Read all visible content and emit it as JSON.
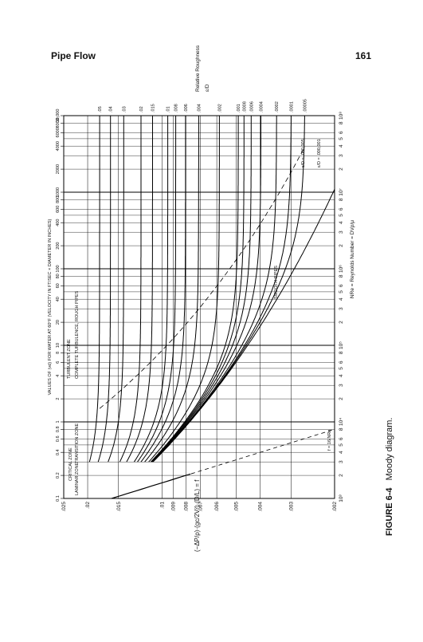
{
  "header": {
    "title": "Pipe Flow",
    "page": "161"
  },
  "figure": {
    "top_axis_label": "VALUES OF (vd) FOR WATER AT 60°F (VELOCITY IN FT/SEC × DIAMETER IN INCHES)",
    "vd_lim": [
      0.1,
      10000
    ],
    "vd_ticks": [
      0.1,
      0.2,
      0.4,
      0.6,
      0.8,
      1,
      2,
      4,
      6,
      8,
      10,
      20,
      40,
      60,
      80,
      100,
      200,
      400,
      600,
      800,
      1000,
      2000,
      4000,
      6000,
      8000,
      {
        "value": 10000,
        "label": "10,000"
      }
    ],
    "re_lim": [
      1000,
      100000000
    ],
    "re_ticks": [
      {
        "value": 1000,
        "label": "10³"
      },
      {
        "value": 2000,
        "label": "2"
      },
      {
        "value": 3000,
        "label": "3"
      },
      {
        "value": 4000,
        "label": "4"
      },
      {
        "value": 5000,
        "label": "5"
      },
      {
        "value": 6000,
        "label": "6"
      },
      {
        "value": 8000,
        "label": "8"
      },
      {
        "value": 10000,
        "label": "10⁴"
      },
      {
        "value": 20000,
        "label": "2"
      },
      {
        "value": 30000,
        "label": "3"
      },
      {
        "value": 40000,
        "label": "4"
      },
      {
        "value": 50000,
        "label": "5"
      },
      {
        "value": 60000,
        "label": "6"
      },
      {
        "value": 80000,
        "label": "8"
      },
      {
        "value": 100000,
        "label": "10⁵"
      },
      {
        "value": 200000,
        "label": "2"
      },
      {
        "value": 300000,
        "label": "3"
      },
      {
        "value": 400000,
        "label": "4"
      },
      {
        "value": 500000,
        "label": "5"
      },
      {
        "value": 600000,
        "label": "6"
      },
      {
        "value": 800000,
        "label": "8"
      },
      {
        "value": 1000000,
        "label": "10⁶"
      },
      {
        "value": 2000000,
        "label": "2"
      },
      {
        "value": 3000000,
        "label": "3"
      },
      {
        "value": 4000000,
        "label": "4"
      },
      {
        "value": 5000000,
        "label": "5"
      },
      {
        "value": 6000000,
        "label": "6"
      },
      {
        "value": 8000000,
        "label": "8"
      },
      {
        "value": 10000000,
        "label": "10⁷"
      },
      {
        "value": 20000000,
        "label": "2"
      },
      {
        "value": 30000000,
        "label": "3"
      },
      {
        "value": 40000000,
        "label": "4"
      },
      {
        "value": 50000000,
        "label": "5"
      },
      {
        "value": 60000000,
        "label": "6"
      },
      {
        "value": 80000000,
        "label": "8"
      },
      {
        "value": 100000000,
        "label": "10⁸"
      }
    ],
    "f_lim": [
      0.002,
      0.025
    ],
    "f_ticks": [
      {
        "value": 0.025,
        "label": ".025"
      },
      {
        "value": 0.02,
        "label": ".02"
      },
      {
        "value": 0.015,
        "label": ".015"
      },
      {
        "value": 0.01,
        "label": ".01"
      },
      {
        "value": 0.009,
        "label": ".009"
      },
      {
        "value": 0.008,
        "label": ".008"
      },
      {
        "value": 0.007,
        "label": ".007"
      },
      {
        "value": 0.006,
        "label": ".006"
      },
      {
        "value": 0.005,
        "label": ".005"
      },
      {
        "value": 0.004,
        "label": ".004"
      },
      {
        "value": 0.003,
        "label": ".003"
      },
      {
        "value": 0.002,
        "label": ".002"
      }
    ],
    "roughness_title": "Relative Roughness",
    "roughness_symbol": "ε/D",
    "roughness": [
      {
        "value": 0.05,
        "label": ".05"
      },
      {
        "value": 0.04,
        "label": ".04"
      },
      {
        "value": 0.03,
        "label": ".03"
      },
      {
        "value": 0.02,
        "label": ".02"
      },
      {
        "value": 0.015,
        "label": ".015"
      },
      {
        "value": 0.01,
        "label": ".01"
      },
      {
        "value": 0.008,
        "label": ".008"
      },
      {
        "value": 0.006,
        "label": ".006"
      },
      {
        "value": 0.004,
        "label": ".004"
      },
      {
        "value": 0.002,
        "label": ".002"
      },
      {
        "value": 0.001,
        "label": ".001"
      },
      {
        "value": 0.0008,
        "label": ".0008"
      },
      {
        "value": 0.0006,
        "label": ".0006"
      },
      {
        "value": 0.0004,
        "label": ".0004"
      },
      {
        "value": 0.0002,
        "label": ".0002"
      },
      {
        "value": 0.0001,
        "label": ".0001"
      },
      {
        "value": 5e-05,
        "label": ".00005"
      }
    ],
    "annotations": {
      "laminar": "LAMINAR ZONE",
      "critical": "CRITICAL ZONE",
      "transition": "TRANSITION ZONE",
      "turbulent": "TURBULENT ZONE",
      "rough": "COMPLETE TURBULENCE, ROUGH PIPES",
      "laminar_eq": "f = 16/NRe",
      "smooth": "SMOOTH PIPES",
      "reynolds": "NRe = Reynolds Number = DVρ/μ",
      "eps1": "ε/D = .000,001",
      "eps5": "ε/D = .000,005"
    },
    "equation": "(−ΔP/ρ)·(gc/2V²)·(D/L) = f",
    "caption": {
      "label": "FIGURE 6-4",
      "text": "Moody diagram."
    }
  }
}
